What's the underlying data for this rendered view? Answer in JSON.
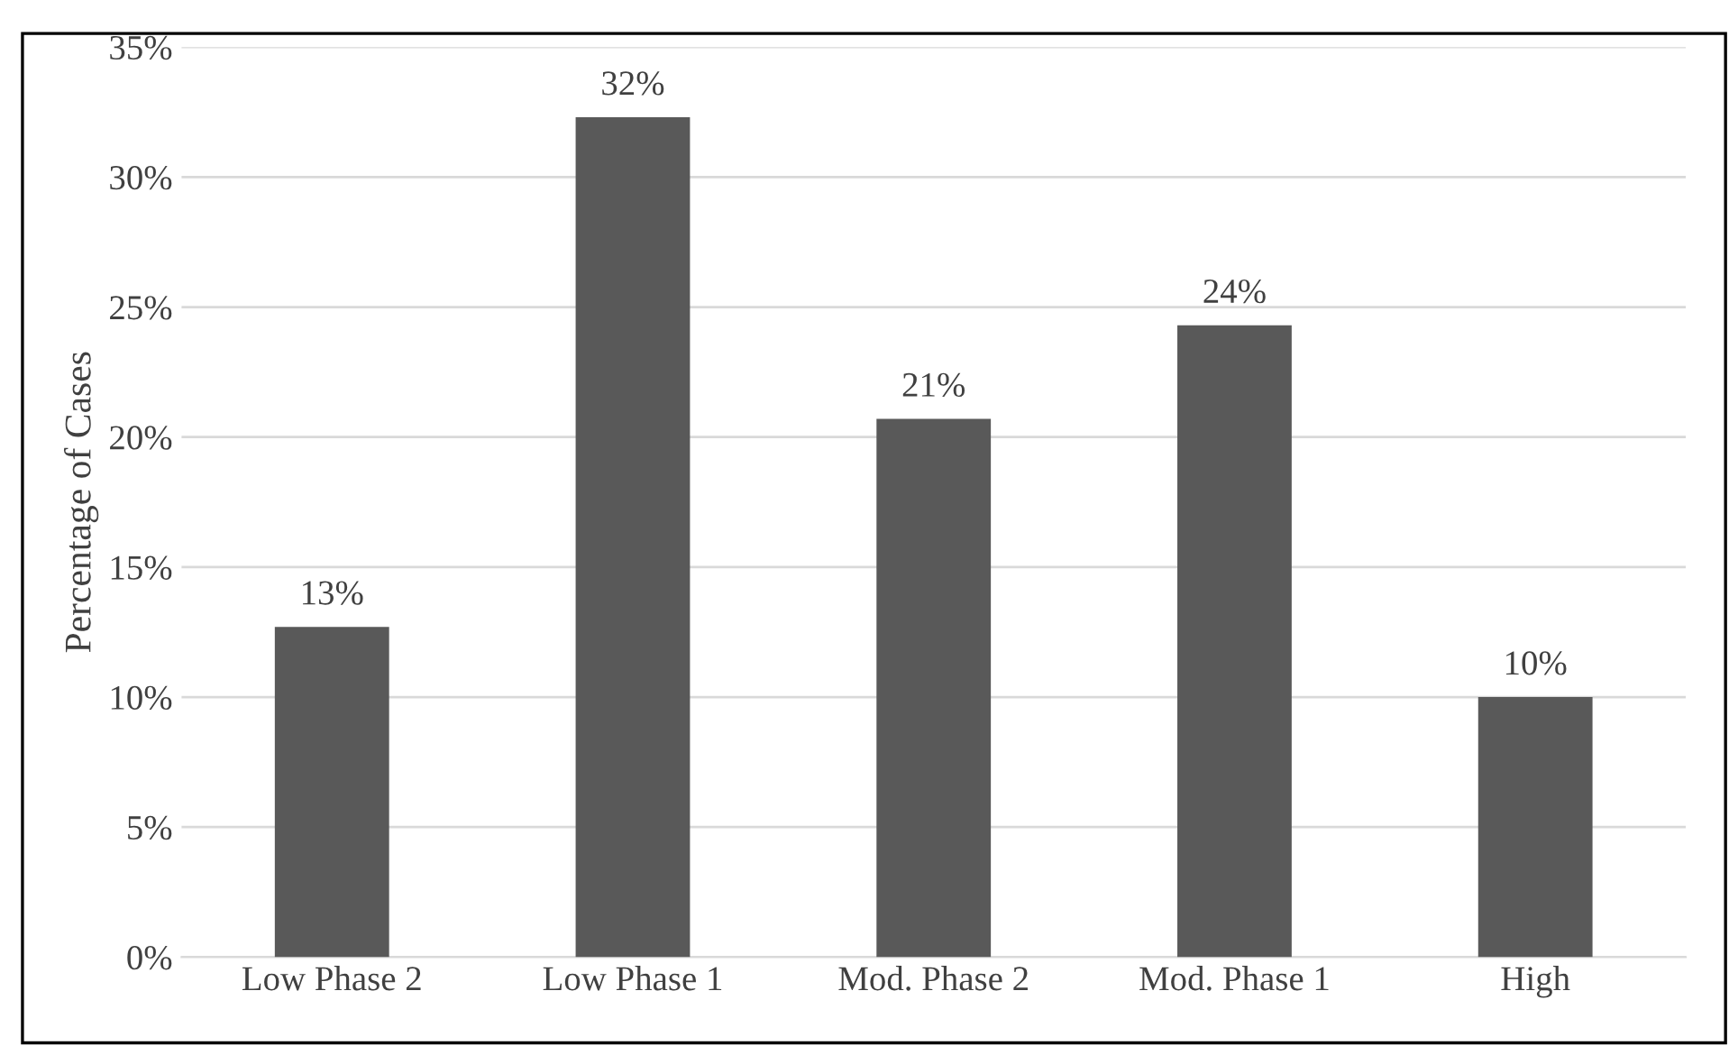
{
  "chart_data": {
    "type": "bar",
    "ylabel": "Percentage of Cases",
    "categories": [
      "Low Phase 2",
      "Low Phase 1",
      "Mod. Phase 2",
      "Mod. Phase 1",
      "High"
    ],
    "values": [
      12.7,
      32.3,
      20.7,
      24.3,
      10.0
    ],
    "value_labels": [
      "13%",
      "32%",
      "21%",
      "24%",
      "10%"
    ],
    "color": "#595959",
    "ylim": [
      0,
      35
    ],
    "yticks": [
      {
        "value": 0,
        "label": "0%"
      },
      {
        "value": 5,
        "label": "5%"
      },
      {
        "value": 10,
        "label": "10%"
      },
      {
        "value": 15,
        "label": "15%"
      },
      {
        "value": 20,
        "label": "20%"
      },
      {
        "value": 25,
        "label": "25%"
      },
      {
        "value": 30,
        "label": "30%"
      },
      {
        "value": 35,
        "label": "35%"
      }
    ],
    "grid": "y"
  }
}
